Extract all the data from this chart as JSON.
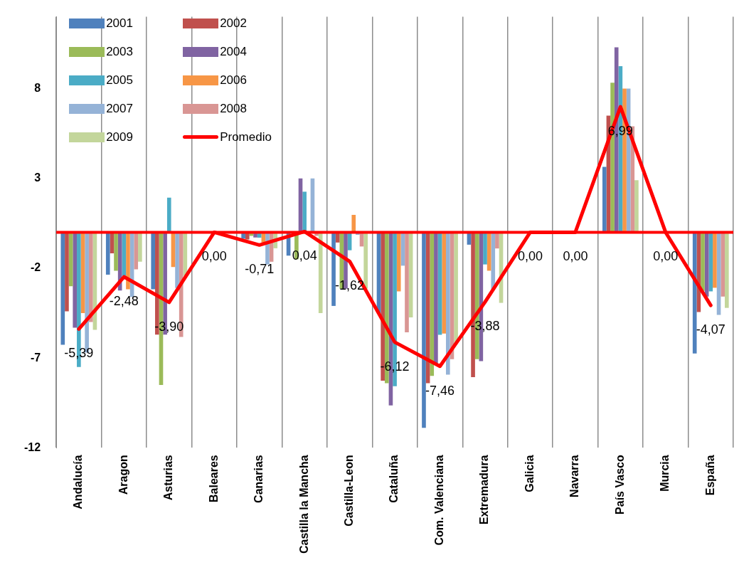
{
  "chart_data": {
    "type": "bar",
    "categories": [
      "Andalucía",
      "Aragon",
      "Asturias",
      "Baleares",
      "Canarias",
      "Castilla la Mancha",
      "Castilla-Leon",
      "Cataluña",
      "Com. Valenciana",
      "Extremadura",
      "Galicia",
      "Navarra",
      "País Vasco",
      "Murcia",
      "España"
    ],
    "series": [
      {
        "name": "2001",
        "color": "#4f81bd",
        "values": [
          -6.26,
          -2.36,
          -3.17,
          0,
          -0.36,
          -1.3,
          -4.1,
          -4.5,
          -10.89,
          -0.69,
          0,
          0,
          3.64,
          0,
          -6.75
        ]
      },
      {
        "name": "2002",
        "color": "#c0504d",
        "values": [
          -4.4,
          -1.17,
          -5.7,
          0,
          -0.4,
          null,
          -0.57,
          -8.26,
          -8.4,
          -8.07,
          0,
          0,
          6.5,
          0,
          -4.44
        ]
      },
      {
        "name": "2003",
        "color": "#9bbb59",
        "values": [
          -3.0,
          -2.14,
          -8.5,
          0,
          -0.2,
          -1.5,
          -3.14,
          -8.4,
          -8.0,
          -7.07,
          0,
          0,
          8.33,
          0,
          -3.26
        ]
      },
      {
        "name": "2004",
        "color": "#8064a2",
        "values": [
          -5.31,
          -3.24,
          -5.7,
          0,
          -0.29,
          3.0,
          -3.14,
          -9.64,
          -7.29,
          -7.17,
          0,
          0,
          10.3,
          0,
          -3.58
        ]
      },
      {
        "name": "2005",
        "color": "#4bacc6",
        "values": [
          -7.5,
          -2.43,
          1.93,
          0,
          -0.3,
          2.26,
          -1.0,
          -8.57,
          -5.71,
          -1.79,
          0,
          0,
          9.25,
          0,
          -3.29
        ]
      },
      {
        "name": "2006",
        "color": "#f79646",
        "values": [
          -4.5,
          -3.17,
          -1.93,
          0,
          -0.57,
          0,
          0.97,
          -3.29,
          -5.64,
          -2.14,
          0,
          0,
          8.0,
          0,
          -3.09
        ]
      },
      {
        "name": "2007",
        "color": "#95b3d7",
        "values": [
          -6.7,
          -3.6,
          -3.1,
          0,
          -1.79,
          3.0,
          -0.14,
          -1.86,
          -7.93,
          -3.17,
          0,
          0,
          8.0,
          0,
          -4.6
        ]
      },
      {
        "name": "2008",
        "color": "#d99694",
        "values": [
          -5.0,
          -2.06,
          -5.83,
          0,
          -1.64,
          -0.2,
          -0.79,
          -5.57,
          -7.07,
          -0.9,
          0,
          0,
          5.9,
          0,
          -3.58
        ]
      },
      {
        "name": "2009",
        "color": "#c3d69b",
        "values": [
          -5.43,
          -1.64,
          -2.43,
          0,
          -0.89,
          -4.5,
          -3.14,
          -4.74,
          -6.2,
          -3.93,
          0,
          0,
          2.9,
          0,
          -4.21
        ]
      },
      {
        "name": "Promedio",
        "type": "line",
        "color": "#ff0000",
        "values": [
          -5.39,
          -2.48,
          -3.9,
          0,
          -0.71,
          0.04,
          -1.62,
          -6.12,
          -7.46,
          -3.88,
          0,
          0,
          6.99,
          0,
          -4.07
        ],
        "value_labels": [
          "-5,39",
          "-2,48",
          "-3,90",
          "0,00",
          "-0,71",
          "0,04",
          "-1,62",
          "-6,12",
          "-7,46",
          "-3,88",
          "0,00",
          "0,00",
          "6,99",
          "0,00",
          "-4,07"
        ]
      }
    ],
    "ylim": [
      -12,
      12
    ],
    "yticks": [
      -12,
      -7,
      -2,
      3,
      8
    ],
    "ref_lines": [
      {
        "axis": "y",
        "value": 0,
        "color": "#ff0000"
      }
    ],
    "grid": "x",
    "legend": "top left",
    "marker": "none"
  }
}
